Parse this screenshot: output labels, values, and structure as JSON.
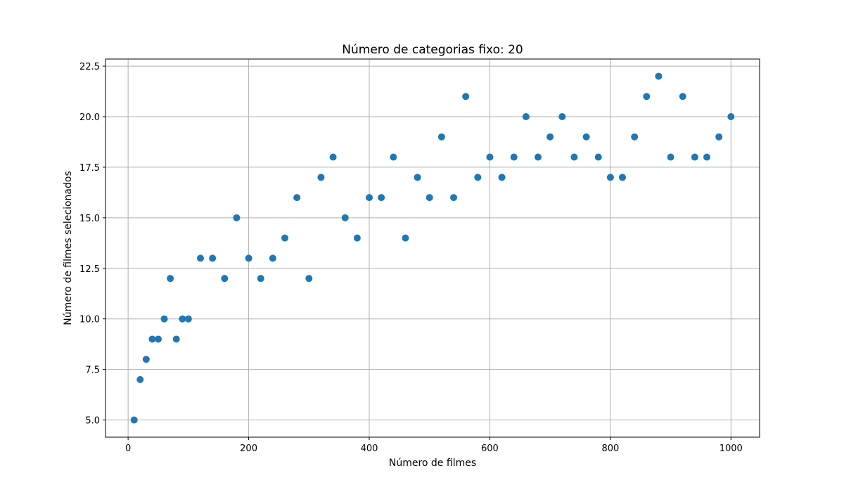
{
  "chart_data": {
    "type": "scatter",
    "title": "Número de categorias fixo: 20",
    "xlabel": "Número de filmes",
    "ylabel": "Número de filmes selecionados",
    "xlim": [
      -37.5,
      1047.5
    ],
    "ylim": [
      4.15,
      22.85
    ],
    "xticks": [
      0,
      200,
      400,
      600,
      800,
      1000
    ],
    "xtick_labels": [
      "0",
      "200",
      "400",
      "600",
      "800",
      "1000"
    ],
    "yticks": [
      5.0,
      7.5,
      10.0,
      12.5,
      15.0,
      17.5,
      20.0,
      22.5
    ],
    "ytick_labels": [
      "5.0",
      "7.5",
      "10.0",
      "12.5",
      "15.0",
      "17.5",
      "20.0",
      "22.5"
    ],
    "grid": true,
    "marker_color": "#1f77b4",
    "x": [
      10,
      20,
      30,
      40,
      50,
      60,
      70,
      80,
      90,
      100,
      120,
      140,
      160,
      180,
      200,
      220,
      240,
      260,
      280,
      300,
      320,
      340,
      360,
      380,
      400,
      420,
      440,
      460,
      480,
      500,
      520,
      540,
      560,
      580,
      600,
      620,
      640,
      660,
      680,
      700,
      720,
      740,
      760,
      780,
      800,
      820,
      840,
      860,
      880,
      900,
      920,
      940,
      960,
      980,
      1000
    ],
    "y": [
      5,
      7,
      8,
      9,
      9,
      10,
      12,
      9,
      10,
      10,
      13,
      13,
      12,
      15,
      13,
      12,
      13,
      14,
      16,
      12,
      17,
      18,
      15,
      14,
      16,
      16,
      18,
      14,
      17,
      16,
      19,
      16,
      21,
      17,
      18,
      17,
      18,
      20,
      18,
      19,
      20,
      18,
      19,
      18,
      17,
      17,
      19,
      21,
      22,
      18,
      21,
      18,
      18,
      19,
      20
    ]
  }
}
